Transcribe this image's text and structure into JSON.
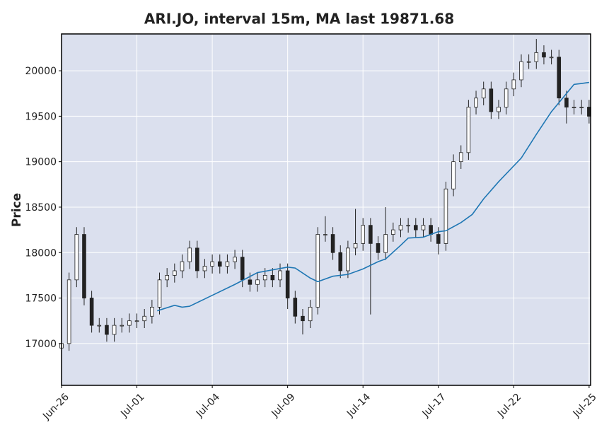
{
  "chart_data": {
    "type": "candlestick",
    "title": "ARI.JO, interval 15m, MA last 19871.68",
    "ylabel": "Price",
    "x": [
      0,
      0.1,
      0.2,
      0.3,
      0.4,
      0.5,
      0.6,
      0.7,
      0.8,
      0.9,
      1,
      1.1,
      1.2,
      1.3,
      1.4,
      1.5,
      1.6,
      1.7,
      1.8,
      1.9,
      2,
      2.1,
      2.2,
      2.3,
      2.4,
      2.5,
      2.6,
      2.7,
      2.8,
      2.9,
      3,
      3.1,
      3.2,
      3.3,
      3.4,
      3.5,
      3.6,
      3.7,
      3.8,
      3.9,
      4,
      4.1,
      4.2,
      4.3,
      4.4,
      4.5,
      4.6,
      4.7,
      4.8,
      4.9,
      5,
      5.1,
      5.2,
      5.3,
      5.4,
      5.5,
      5.6,
      5.7,
      5.8,
      5.9,
      6,
      6.1,
      6.2,
      6.3,
      6.4,
      6.5,
      6.6,
      6.7,
      6.8,
      6.9,
      7
    ],
    "open": [
      16950,
      17000,
      17700,
      18200,
      17500,
      17200,
      17200,
      17100,
      17200,
      17200,
      17250,
      17250,
      17300,
      17400,
      17700,
      17750,
      17800,
      17900,
      18050,
      17800,
      17850,
      17900,
      17850,
      17900,
      17950,
      17700,
      17650,
      17700,
      17750,
      17700,
      17800,
      17500,
      17300,
      17250,
      17400,
      18200,
      18200,
      18000,
      17800,
      18050,
      18100,
      18300,
      18100,
      18000,
      18200,
      18250,
      18300,
      18300,
      18250,
      18300,
      18200,
      18100,
      18700,
      19000,
      19100,
      19600,
      19700,
      19800,
      19550,
      19600,
      19800,
      19900,
      20100,
      20100,
      20200,
      20150,
      20150,
      19700,
      19600,
      19600,
      19600
    ],
    "high": [
      17080,
      17780,
      18280,
      18280,
      17580,
      17280,
      17280,
      17280,
      17280,
      17330,
      17330,
      17380,
      17480,
      17780,
      17830,
      17880,
      17980,
      18130,
      18130,
      17930,
      17980,
      17980,
      17980,
      18030,
      18030,
      17780,
      17780,
      17830,
      17830,
      17880,
      17880,
      17580,
      17380,
      17480,
      18280,
      18400,
      18280,
      18080,
      18130,
      18480,
      18380,
      18380,
      18180,
      18500,
      18330,
      18380,
      18380,
      18380,
      18380,
      18380,
      18280,
      18780,
      19080,
      19180,
      19680,
      19780,
      19880,
      19880,
      19680,
      19880,
      19980,
      20180,
      20180,
      20350,
      20280,
      20230,
      20230,
      19780,
      19680,
      19680,
      19680
    ],
    "low": [
      16870,
      16920,
      17620,
      17420,
      17120,
      17120,
      17020,
      17020,
      17120,
      17120,
      17170,
      17170,
      17220,
      17320,
      17620,
      17670,
      17720,
      17820,
      17720,
      17720,
      17770,
      17770,
      17770,
      17820,
      17620,
      17570,
      17570,
      17620,
      17620,
      17620,
      17380,
      17220,
      17100,
      17170,
      17320,
      18120,
      17920,
      17720,
      17720,
      17970,
      18020,
      17320,
      17920,
      17920,
      18120,
      18170,
      18220,
      18170,
      18170,
      18120,
      17980,
      18020,
      18620,
      18920,
      19020,
      19520,
      19620,
      19470,
      19470,
      19520,
      19720,
      19820,
      20020,
      20020,
      20070,
      20070,
      19620,
      19420,
      19520,
      19520,
      19420
    ],
    "close": [
      17000,
      17700,
      18200,
      17500,
      17200,
      17200,
      17100,
      17200,
      17200,
      17250,
      17250,
      17300,
      17400,
      17700,
      17750,
      17800,
      17900,
      18050,
      17800,
      17850,
      17900,
      17850,
      17900,
      17950,
      17700,
      17650,
      17700,
      17750,
      17700,
      17800,
      17500,
      17300,
      17250,
      17400,
      18200,
      18200,
      18000,
      17800,
      18050,
      18100,
      18300,
      18100,
      18000,
      18200,
      18250,
      18300,
      18300,
      18250,
      18300,
      18200,
      18100,
      18700,
      19000,
      19100,
      19600,
      19700,
      19800,
      19550,
      19600,
      19800,
      19900,
      20100,
      20100,
      20200,
      20150,
      20150,
      19700,
      19600,
      19600,
      19600,
      19500
    ],
    "candle_color": "#222222",
    "ma": {
      "color": "#1f77b4",
      "x": [
        1.27,
        1.5,
        1.6,
        1.7,
        2.0,
        2.3,
        2.6,
        3.0,
        3.1,
        3.3,
        3.4,
        3.6,
        3.8,
        4.0,
        4.2,
        4.3,
        4.5,
        4.6,
        4.8,
        5.0,
        5.1,
        5.3,
        5.45,
        5.6,
        5.8,
        6.1,
        6.3,
        6.5,
        6.8,
        6.9,
        7.0
      ],
      "values": [
        17360,
        17420,
        17400,
        17410,
        17530,
        17650,
        17780,
        17840,
        17830,
        17720,
        17680,
        17740,
        17760,
        17820,
        17900,
        17930,
        18080,
        18160,
        18170,
        18230,
        18240,
        18330,
        18420,
        18590,
        18780,
        19040,
        19300,
        19550,
        19850,
        19860,
        19871.68
      ]
    },
    "xlim": [
      0,
      7.02
    ],
    "xticks": [
      {
        "value": 0,
        "label": "Jun-26"
      },
      {
        "value": 1,
        "label": "Jul-01"
      },
      {
        "value": 2,
        "label": "Jul-04"
      },
      {
        "value": 3,
        "label": "Jul-09"
      },
      {
        "value": 4,
        "label": "Jul-14"
      },
      {
        "value": 5,
        "label": "Jul-17"
      },
      {
        "value": 6,
        "label": "Jul-22"
      },
      {
        "value": 7,
        "label": "Jul-25"
      }
    ],
    "ylim": [
      16540,
      20405
    ],
    "yticks": [
      17000,
      17500,
      18000,
      18500,
      19000,
      19500,
      20000
    ],
    "grid": true
  }
}
